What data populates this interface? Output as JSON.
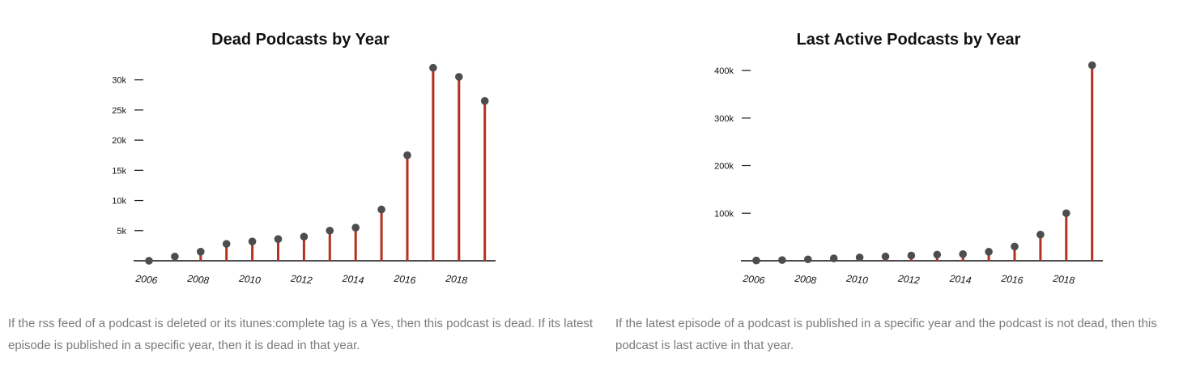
{
  "colors": {
    "stem": "#b5301e",
    "point": "#4d4d4d",
    "axis": "#111111",
    "caption": "#7a7a7a"
  },
  "chart_data": [
    {
      "type": "lollipop",
      "title": "Dead Podcasts by Year",
      "x": [
        2006,
        2007,
        2008,
        2009,
        2010,
        2011,
        2012,
        2013,
        2014,
        2015,
        2016,
        2017,
        2018,
        2019
      ],
      "values": [
        0,
        700,
        1500,
        2800,
        3200,
        3600,
        4000,
        5000,
        5500,
        8500,
        17500,
        32000,
        30500,
        26500
      ],
      "xticks": [
        "2006",
        "2008",
        "2010",
        "2012",
        "2014",
        "2016",
        "2018"
      ],
      "yticks": [
        "5k",
        "10k",
        "15k",
        "20k",
        "25k",
        "30k"
      ],
      "ytick_values": [
        5000,
        10000,
        15000,
        20000,
        25000,
        30000
      ],
      "ylim": [
        0,
        32500
      ],
      "xlabel": "",
      "ylabel": "",
      "grid": false,
      "caption": "If the rss feed of a podcast is deleted or its itunes:complete tag is a Yes, then this podcast is dead. If its latest episode is published in a specific year, then it is dead in that year."
    },
    {
      "type": "lollipop",
      "title": "Last Active Podcasts by Year",
      "x": [
        2006,
        2007,
        2008,
        2009,
        2010,
        2011,
        2012,
        2013,
        2014,
        2015,
        2016,
        2017,
        2018,
        2019
      ],
      "values": [
        500,
        1500,
        3000,
        5000,
        7000,
        9000,
        11000,
        13000,
        14000,
        19000,
        30000,
        55000,
        100000,
        411000
      ],
      "xticks": [
        "2006",
        "2008",
        "2010",
        "2012",
        "2014",
        "2016",
        "2018"
      ],
      "yticks": [
        "100k",
        "200k",
        "300k",
        "400k"
      ],
      "ytick_values": [
        100000,
        200000,
        300000,
        400000
      ],
      "ylim": [
        0,
        412000
      ],
      "xlabel": "",
      "ylabel": "",
      "grid": false,
      "caption": "If the latest episode of a podcast is published in a specific year and the podcast is not dead, then this podcast is last active in that year."
    }
  ]
}
